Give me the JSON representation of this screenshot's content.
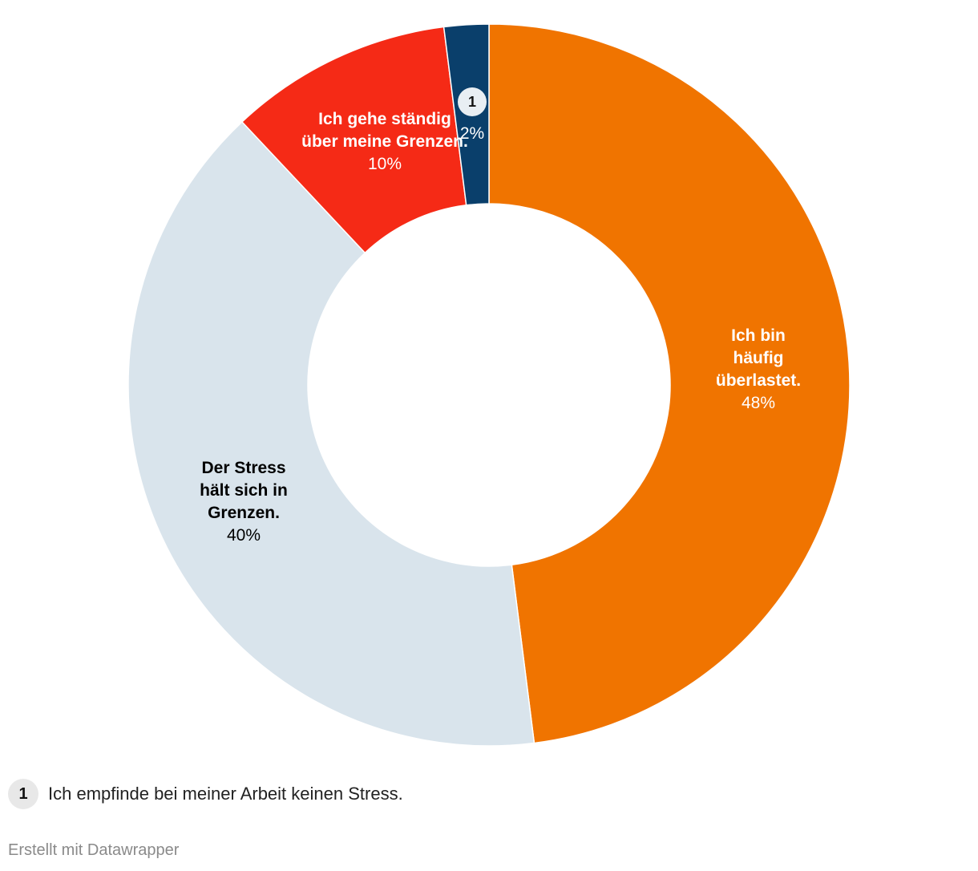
{
  "chart_data": {
    "type": "donut",
    "slices": [
      {
        "name": "Ich bin häufig überlastet.",
        "label_lines": [
          "Ich bin",
          "häufig",
          "überlastet."
        ],
        "value": 48,
        "value_label": "48%",
        "color": "#f07400",
        "text_color": "#ffffff"
      },
      {
        "name": "Der Stress hält sich in Grenzen.",
        "label_lines": [
          "Der Stress",
          "hält sich in",
          "Grenzen."
        ],
        "value": 40,
        "value_label": "40%",
        "color": "#d9e4ec",
        "text_color": "#000000"
      },
      {
        "name": "Ich gehe ständig über meine Grenzen.",
        "label_lines": [
          "Ich gehe ständig",
          "über meine Grenzen."
        ],
        "value": 10,
        "value_label": "10%",
        "color": "#f52a16",
        "text_color": "#ffffff"
      },
      {
        "name": "Ich empfinde bei meiner Arbeit keinen Stress.",
        "marker": "1",
        "value": 2,
        "value_label": "2%",
        "color": "#0a3f6b",
        "text_color": "#ffffff"
      }
    ]
  },
  "footnote": {
    "marker": "1",
    "text": "Ich empfinde bei meiner Arbeit keinen Stress."
  },
  "credit": "Erstellt mit Datawrapper"
}
